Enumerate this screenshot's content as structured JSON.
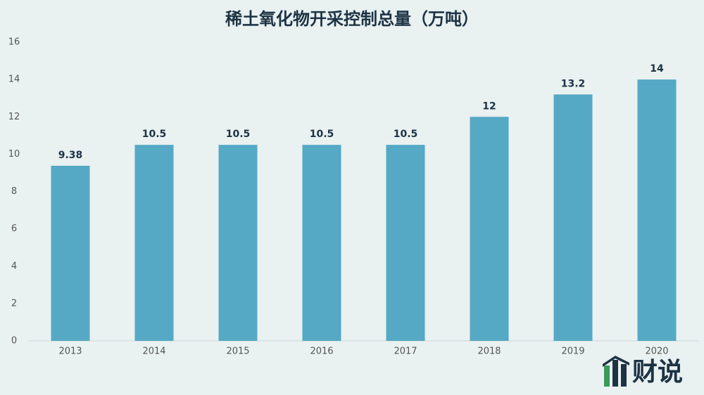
{
  "chart_data": {
    "type": "bar",
    "title": "稀土氧化物开采控制总量（万吨）",
    "categories": [
      "2013",
      "2014",
      "2015",
      "2016",
      "2017",
      "2018",
      "2019",
      "2020"
    ],
    "values": [
      9.38,
      10.5,
      10.5,
      10.5,
      10.5,
      12,
      13.2,
      14
    ],
    "color": "#55a9c4",
    "ylim": [
      0,
      16
    ],
    "yticks": [
      0,
      2,
      4,
      6,
      8,
      10,
      12,
      14,
      16
    ],
    "grid": false,
    "logo": "财说"
  }
}
